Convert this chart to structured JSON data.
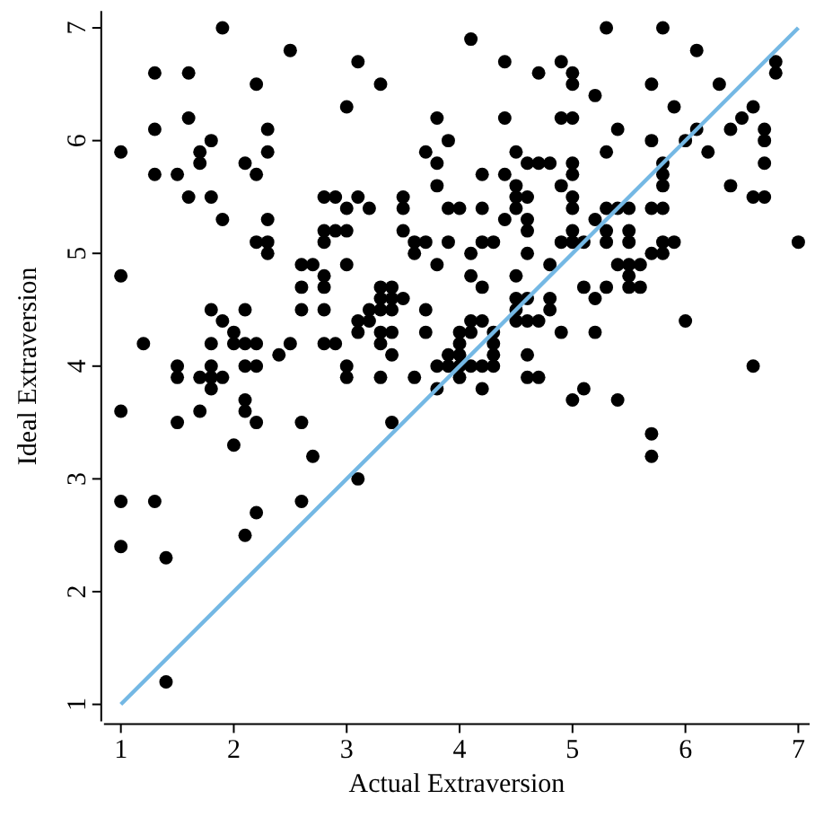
{
  "chart_data": {
    "type": "scatter",
    "xlabel": "Actual Extraversion",
    "ylabel": "Ideal Extraversion",
    "xlim": [
      0.85,
      7.1
    ],
    "ylim": [
      0.85,
      7.15
    ],
    "xticks": [
      1,
      2,
      3,
      4,
      5,
      6,
      7
    ],
    "yticks": [
      1,
      2,
      3,
      4,
      5,
      6,
      7
    ],
    "series": [
      {
        "marker": "circle",
        "color": "#000000",
        "x": [
          1.9,
          2.5,
          1.3,
          1.6,
          2.2,
          3.1,
          3.3,
          3.0,
          1.3,
          1.6,
          2.3,
          1.0,
          1.8,
          1.7,
          1.7,
          2.3,
          2.1,
          1.3,
          1.5,
          2.2,
          1.6,
          1.8,
          1.9,
          2.3,
          2.2,
          2.3,
          2.3,
          1.0,
          1.2,
          1.8,
          1.9,
          2.0,
          2.1,
          2.0,
          2.1,
          2.2,
          1.8,
          1.5,
          1.5,
          1.7,
          1.8,
          1.8,
          1.9,
          1.8,
          2.1,
          2.2,
          2.1,
          2.4,
          2.5,
          2.6,
          2.7,
          2.6,
          2.6,
          2.8,
          2.8,
          2.8,
          2.8,
          2.9,
          2.8,
          2.9,
          3.0,
          3.1,
          3.2,
          2.8,
          2.9,
          3.0,
          2.8,
          3.0,
          3.0,
          3.0,
          3.3,
          3.6,
          3.8,
          3.3,
          3.4,
          3.3,
          3.4,
          3.5,
          3.2,
          3.3,
          3.4,
          3.1,
          3.2,
          3.1,
          3.3,
          3.4,
          3.3,
          3.4,
          3.5,
          3.5,
          3.5,
          3.6,
          3.7,
          3.6,
          3.8,
          3.7,
          3.7,
          3.7,
          3.8,
          3.8,
          3.8,
          3.8,
          4.1,
          5.3,
          5.8,
          4.4,
          4.9,
          5.0,
          5.0,
          4.7,
          5.2,
          5.7,
          6.1,
          6.3,
          5.9,
          6.8,
          6.8,
          6.6,
          6.5,
          6.4,
          6.7,
          6.7,
          6.7,
          6.1,
          6.0,
          6.2,
          5.7,
          5.3,
          5.4,
          4.4,
          4.9,
          5.0,
          3.9,
          4.5,
          4.6,
          4.7,
          4.8,
          5.0,
          4.2,
          4.4,
          5.0,
          4.5,
          4.9,
          4.5,
          4.6,
          5.0,
          4.5,
          5.0,
          3.9,
          4.0,
          4.2,
          4.4,
          4.6,
          4.6,
          5.3,
          5.4,
          5.5,
          5.7,
          5.8,
          5.2,
          5.0,
          5.3,
          5.5,
          5.8,
          5.8,
          5.8,
          6.4,
          6.6,
          6.7,
          3.9,
          4.2,
          4.3,
          4.9,
          5.0,
          5.1,
          5.3,
          5.5,
          5.8,
          5.9,
          7.0,
          4.1,
          4.6,
          5.7,
          5.8,
          4.8,
          5.4,
          5.5,
          5.6,
          5.5,
          5.5,
          5.6,
          4.1,
          4.2,
          4.5,
          5.1,
          5.3,
          5.2,
          4.5,
          4.6,
          4.8,
          4.5,
          4.8,
          4.5,
          4.6,
          4.7,
          4.1,
          4.2,
          4.0,
          4.1,
          4.3,
          4.9,
          5.2,
          6.0,
          4.0,
          4.3,
          3.9,
          4.0,
          4.3,
          4.6,
          3.9,
          4.0,
          4.1,
          4.2,
          4.3,
          4.0,
          4.6,
          4.7,
          6.6,
          4.2,
          5.0,
          5.1,
          5.4,
          5.7,
          5.7,
          1.0,
          1.7,
          2.1,
          1.5,
          2.2,
          2.6,
          3.4,
          2.0,
          2.7,
          3.1,
          1.0,
          1.3,
          2.6,
          2.2,
          2.1,
          1.0,
          1.4,
          1.4
        ],
        "values": [
          7.0,
          6.8,
          6.6,
          6.6,
          6.5,
          6.7,
          6.5,
          6.3,
          6.1,
          6.2,
          6.1,
          5.9,
          6.0,
          5.9,
          5.8,
          5.9,
          5.8,
          5.7,
          5.7,
          5.7,
          5.5,
          5.5,
          5.3,
          5.3,
          5.1,
          5.1,
          5.0,
          4.8,
          4.2,
          4.5,
          4.4,
          4.3,
          4.5,
          4.2,
          4.2,
          4.2,
          4.2,
          4.0,
          3.9,
          3.9,
          4.0,
          3.9,
          3.9,
          3.8,
          4.0,
          4.0,
          3.7,
          4.1,
          4.2,
          4.9,
          4.9,
          4.7,
          4.5,
          4.8,
          4.7,
          4.5,
          4.2,
          4.2,
          5.5,
          5.5,
          5.4,
          5.5,
          5.4,
          5.2,
          5.2,
          5.2,
          5.1,
          4.9,
          4.0,
          3.9,
          3.9,
          3.9,
          3.8,
          4.7,
          4.7,
          4.6,
          4.6,
          4.6,
          4.5,
          4.5,
          4.5,
          4.4,
          4.4,
          4.3,
          4.3,
          4.3,
          4.2,
          4.1,
          5.5,
          5.4,
          5.2,
          5.1,
          5.1,
          5.0,
          4.9,
          4.5,
          4.3,
          5.9,
          6.2,
          5.8,
          5.6,
          4.0,
          6.9,
          7.0,
          7.0,
          6.7,
          6.7,
          6.6,
          6.5,
          6.6,
          6.4,
          6.5,
          6.8,
          6.5,
          6.3,
          6.7,
          6.6,
          6.3,
          6.2,
          6.1,
          6.1,
          6.0,
          5.8,
          6.1,
          6.0,
          5.9,
          6.0,
          5.9,
          6.1,
          6.2,
          6.2,
          6.2,
          6.0,
          5.9,
          5.8,
          5.8,
          5.8,
          5.8,
          5.7,
          5.7,
          5.7,
          5.6,
          5.6,
          5.5,
          5.5,
          5.5,
          5.4,
          5.4,
          5.4,
          5.4,
          5.4,
          5.3,
          5.3,
          5.2,
          5.4,
          5.4,
          5.4,
          5.4,
          5.4,
          5.3,
          5.2,
          5.2,
          5.2,
          5.8,
          5.7,
          5.6,
          5.6,
          5.5,
          5.5,
          5.1,
          5.1,
          5.1,
          5.1,
          5.1,
          5.1,
          5.1,
          5.1,
          5.1,
          5.1,
          5.1,
          5.0,
          5.0,
          5.0,
          5.0,
          4.9,
          4.9,
          4.9,
          4.9,
          4.8,
          4.7,
          4.7,
          4.8,
          4.7,
          4.8,
          4.7,
          4.7,
          4.6,
          4.6,
          4.6,
          4.6,
          4.5,
          4.5,
          4.4,
          4.4,
          4.4,
          4.4,
          4.4,
          4.3,
          4.3,
          4.3,
          4.3,
          4.3,
          4.4,
          4.2,
          4.2,
          4.1,
          4.1,
          4.1,
          4.1,
          4.0,
          4.0,
          4.0,
          4.0,
          4.0,
          3.9,
          3.9,
          3.9,
          4.0,
          3.8,
          3.7,
          3.8,
          3.7,
          3.4,
          3.2,
          3.6,
          3.6,
          3.6,
          3.5,
          3.5,
          3.5,
          3.5,
          3.3,
          3.2,
          3.0,
          2.8,
          2.8,
          2.8,
          2.7,
          2.5,
          2.4,
          2.3,
          1.2
        ]
      },
      {
        "type": "line",
        "color": "#74b8e4",
        "x": [
          1,
          7
        ],
        "values": [
          1,
          7
        ]
      }
    ]
  }
}
